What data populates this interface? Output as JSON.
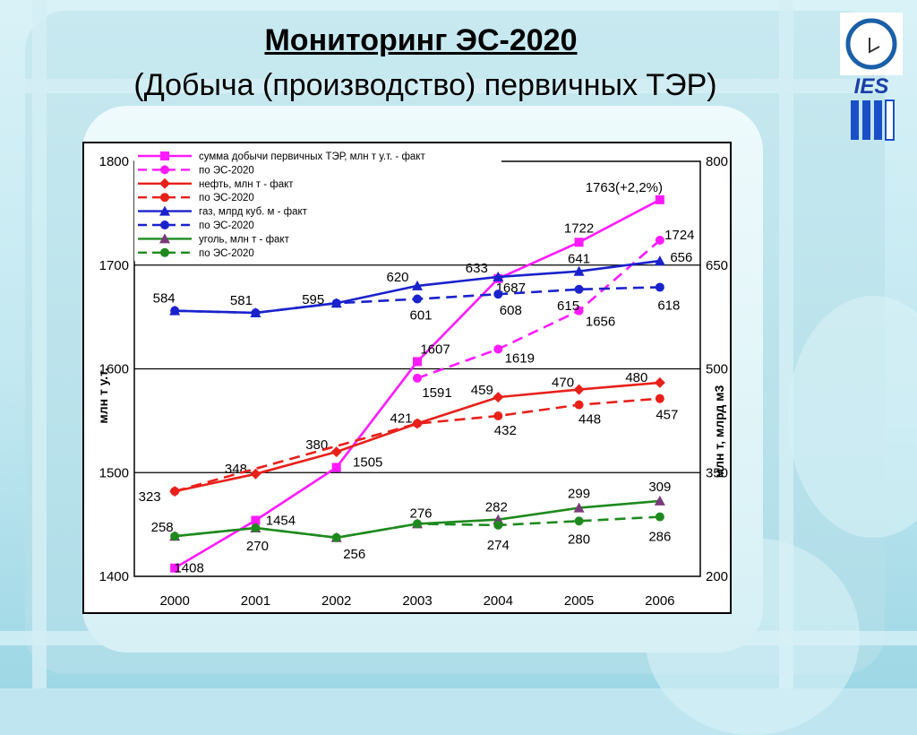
{
  "title": "Мониторинг ЭС-2020",
  "subtitle": "(Добыча (производство) первичных ТЭР)",
  "logo_text": "IES",
  "colors": {
    "sum": "#ff1aff",
    "oil": "#e8201a",
    "gas": "#1a22cc",
    "coal": "#1e8a1e",
    "coal_marker": "#7a3a7a"
  },
  "chart_data": {
    "type": "line",
    "categories": [
      "2000",
      "2001",
      "2002",
      "2003",
      "2004",
      "2005",
      "2006"
    ],
    "ylabel_left": "млн т у.т.",
    "ylabel_right": "млн т,  млрд м3",
    "ylim_left": [
      1400,
      1800
    ],
    "ylim_right": [
      200,
      800
    ],
    "yticks_left": [
      "1400",
      "1500",
      "1600",
      "1700",
      "1800"
    ],
    "yticks_right": [
      "200",
      "350",
      "500",
      "650",
      "800"
    ],
    "grid": true,
    "legend_position": "top-left",
    "series": [
      {
        "name": "сумма добычи первичных ТЭР, млн т у.т. - факт",
        "axis": "left",
        "style": "solid",
        "marker": "square",
        "color_key": "sum",
        "values": [
          1408,
          1454,
          1505,
          1607,
          1687,
          1722,
          1763
        ],
        "labels": [
          "1408",
          "1454",
          "1505",
          "1607",
          "1687",
          "1722",
          "1763(+2,2%)"
        ]
      },
      {
        "name": "по ЭС-2020",
        "axis": "left",
        "style": "dashed",
        "marker": "circle",
        "color_key": "sum",
        "x_start": 3,
        "values": [
          null,
          null,
          null,
          1591,
          1619,
          1656,
          1724
        ],
        "labels": [
          "",
          "",
          "",
          "1591",
          "1619",
          "1656",
          "1724"
        ]
      },
      {
        "name": "нефть, млн т - факт",
        "axis": "right",
        "style": "solid",
        "marker": "diamond",
        "color_key": "oil",
        "values": [
          323,
          348,
          380,
          421,
          459,
          470,
          480
        ],
        "labels": [
          "323",
          "348",
          "380",
          "421",
          "459",
          "470",
          "480"
        ]
      },
      {
        "name": "по ЭС-2020",
        "axis": "right",
        "style": "dashed",
        "marker": "circle",
        "color_key": "oil",
        "values": [
          323,
          null,
          null,
          421,
          432,
          448,
          457
        ],
        "labels": [
          "",
          "",
          "",
          "",
          "432",
          "448",
          "457"
        ]
      },
      {
        "name": "газ, млрд куб. м - факт",
        "axis": "right",
        "style": "solid",
        "marker": "triangle",
        "color_key": "gas",
        "values": [
          584,
          581,
          595,
          620,
          633,
          641,
          656
        ],
        "labels": [
          "584",
          "581",
          "595",
          "620",
          "633",
          "641",
          "656"
        ]
      },
      {
        "name": "по ЭС-2020",
        "axis": "right",
        "style": "dashed",
        "marker": "circle",
        "color_key": "gas",
        "values": [
          584,
          581,
          595,
          601,
          608,
          615,
          618
        ],
        "labels": [
          "",
          "",
          "",
          "601",
          "608",
          "615",
          "618"
        ]
      },
      {
        "name": "уголь, млн т - факт",
        "axis": "right",
        "style": "solid",
        "marker": "triangle",
        "color_key": "coal",
        "values": [
          258,
          270,
          256,
          276,
          282,
          299,
          309
        ],
        "labels": [
          "258",
          "270",
          "256",
          "276",
          "282",
          "299",
          "309"
        ]
      },
      {
        "name": "по ЭС-2020",
        "axis": "right",
        "style": "dashed",
        "marker": "circle",
        "color_key": "coal",
        "values": [
          258,
          270,
          256,
          276,
          274,
          280,
          286
        ],
        "labels": [
          "",
          "",
          "",
          "",
          "274",
          "280",
          "286"
        ]
      }
    ]
  }
}
